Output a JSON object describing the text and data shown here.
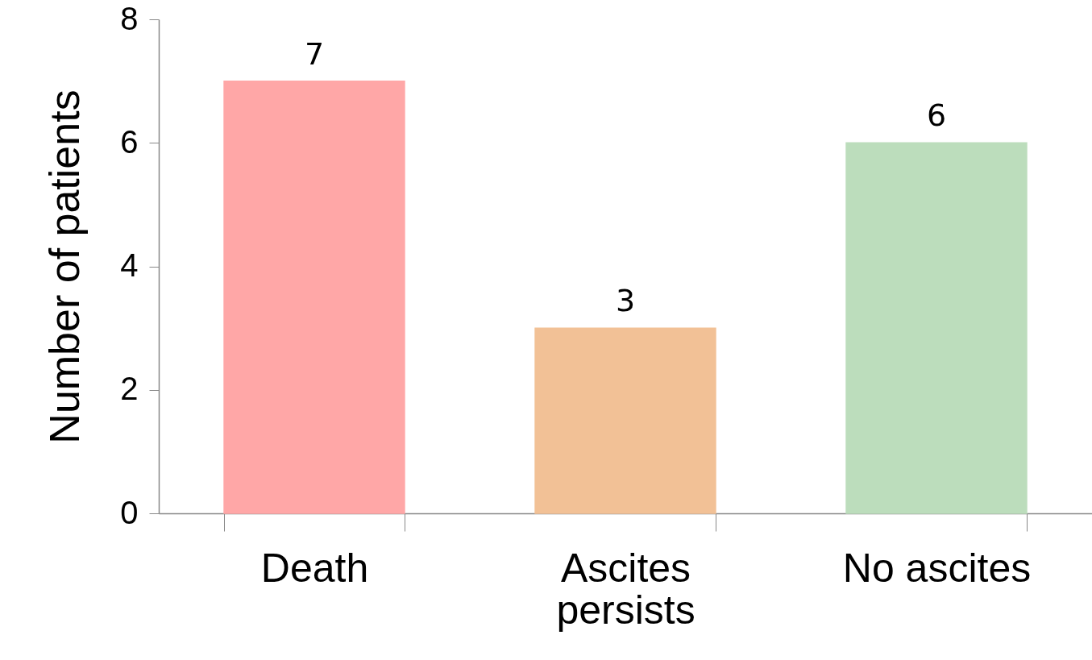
{
  "chart_data": {
    "type": "bar",
    "ylabel": "Number of patients",
    "categories": [
      "Death",
      "Ascites persists",
      "No ascites"
    ],
    "values": [
      7,
      3,
      6
    ],
    "colors": [
      "#ffa7a7",
      "#f2c196",
      "#bcddbc"
    ],
    "ylim": [
      0,
      8
    ],
    "yticks": [
      0,
      2,
      4,
      6,
      8
    ],
    "grid": false,
    "data_labels": true
  }
}
